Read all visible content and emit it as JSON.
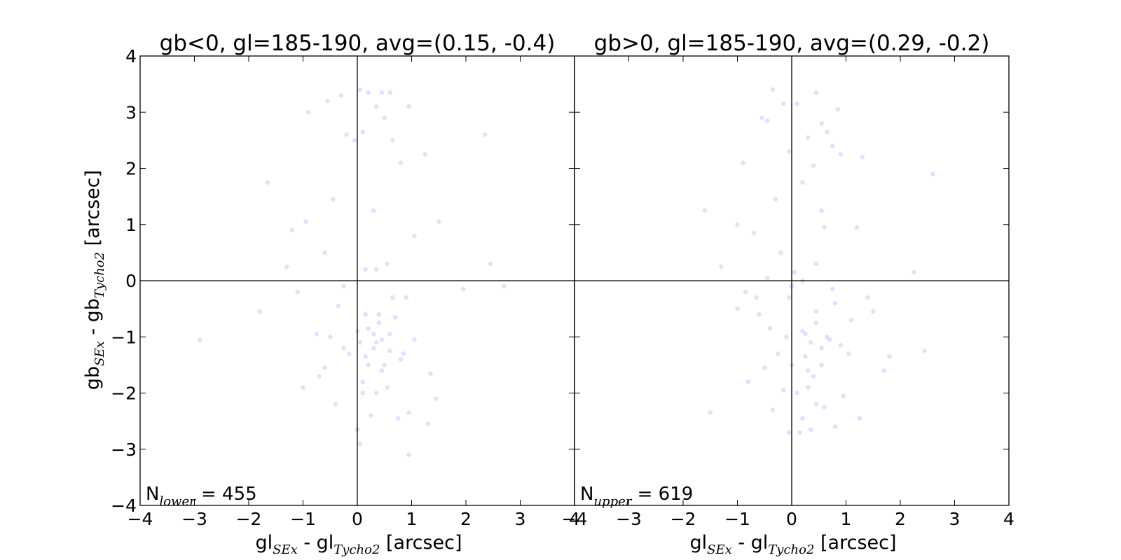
{
  "chart_data": [
    {
      "type": "scatter",
      "title": "gb<0, gl=185-190, avg=(0.15, -0.4)",
      "xlabel": {
        "main": "gl",
        "sub": "SEx",
        "mid": " - gl",
        "sub2": "Tycho2",
        "unit": " [arcsec]"
      },
      "ylabel": {
        "main": "gb",
        "sub": "SEx",
        "mid": " - gb",
        "sub2": "Tycho2",
        "unit": " [arcsec]"
      },
      "xlim": [
        -4,
        4
      ],
      "ylim": [
        -4,
        4
      ],
      "xticks": [
        "−4",
        "−3",
        "−2",
        "−1",
        "0",
        "1",
        "2",
        "3",
        "4"
      ],
      "yticks": [
        "−4",
        "−3",
        "−2",
        "−1",
        "0",
        "1",
        "2",
        "3",
        "4"
      ],
      "reference_lines": {
        "x": 0,
        "y": 0
      },
      "count_label": {
        "main": "N",
        "sub": "lower",
        "text": " = 455"
      },
      "point_color": "#4b4bff",
      "sample_points": {
        "x": [
          0.05,
          0.2,
          0.35,
          -0.3,
          0.45,
          0.6,
          -0.55,
          0.95,
          -0.9,
          1.25,
          0.5,
          -0.2,
          0.65,
          0.1,
          -0.05,
          2.35,
          -1.2,
          0.8,
          -1.65,
          0.3,
          -0.45,
          1.05,
          0.55,
          -0.95,
          0.15,
          1.5,
          2.45,
          -0.6,
          0.35,
          -1.3,
          2.7,
          1.95,
          -1.1,
          0.9,
          -1.8,
          0.4,
          -0.35,
          0.7,
          -0.75,
          0.2,
          0.05,
          0.45,
          -0.25,
          0.6,
          1.05,
          -2.9,
          1.35,
          0.3,
          -0.15,
          0.85,
          -0.6,
          0.5,
          -1.0,
          1.45,
          0.1,
          -0.4,
          0.25,
          0.75,
          0.0,
          0.95,
          0.35,
          -0.7,
          0.55,
          1.3,
          0.2,
          -0.25,
          0.65,
          0.0,
          0.4,
          0.8,
          0.05,
          0.15,
          0.95,
          -0.5,
          0.3,
          0.6,
          0.15,
          0.1,
          0.45,
          0.35
        ],
        "y": [
          3.4,
          3.35,
          3.1,
          3.3,
          3.35,
          3.35,
          3.2,
          3.1,
          3.0,
          2.25,
          2.9,
          2.6,
          2.5,
          2.65,
          2.5,
          2.6,
          0.9,
          2.1,
          1.75,
          1.25,
          1.45,
          0.8,
          0.3,
          1.05,
          0.2,
          1.05,
          0.3,
          0.5,
          0.2,
          0.25,
          -0.1,
          -0.15,
          -0.2,
          -0.3,
          -0.55,
          -0.6,
          -0.45,
          -0.65,
          -0.95,
          -0.85,
          -1.1,
          -1.05,
          -1.2,
          -0.95,
          -1.05,
          -1.05,
          -1.65,
          -1.2,
          -1.3,
          -1.3,
          -1.55,
          -1.5,
          -1.9,
          -2.1,
          -1.8,
          -2.2,
          -2.4,
          -2.45,
          -2.65,
          -2.35,
          -2.0,
          -1.7,
          -1.9,
          -2.55,
          -1.5,
          -0.1,
          -0.3,
          -0.9,
          -0.75,
          -1.4,
          -2.9,
          -1.35,
          -3.1,
          -1.0,
          -0.95,
          -1.25,
          -0.6,
          -2.0,
          -1.6,
          -1.1
        ]
      }
    },
    {
      "type": "scatter",
      "title": "gb>0, gl=185-190, avg=(0.29, -0.2)",
      "xlabel": {
        "main": "gl",
        "sub": "SEx",
        "mid": " - gl",
        "sub2": "Tycho2",
        "unit": " [arcsec]"
      },
      "ylabel": null,
      "xlim": [
        -4,
        4
      ],
      "ylim": [
        -4,
        4
      ],
      "xticks": [
        "−4",
        "−3",
        "−2",
        "−1",
        "0",
        "1",
        "2",
        "3",
        "4"
      ],
      "reference_lines": {
        "x": 0,
        "y": 0
      },
      "count_label": {
        "main": "N",
        "sub": "upper",
        "text": " = 619"
      },
      "point_color": "#4b4bff",
      "sample_points": {
        "x": [
          -0.35,
          -0.15,
          0.45,
          0.1,
          -0.55,
          0.85,
          0.55,
          -0.45,
          0.3,
          0.65,
          0.9,
          -0.05,
          0.4,
          0.75,
          -0.9,
          1.3,
          2.6,
          0.2,
          -0.3,
          0.55,
          -1.6,
          -1.0,
          0.6,
          -0.7,
          -0.2,
          1.2,
          0.05,
          0.45,
          -0.45,
          -1.3,
          0.2,
          -0.85,
          0.75,
          2.25,
          -0.05,
          1.4,
          -1.0,
          0.45,
          0.8,
          -0.6,
          1.1,
          0.2,
          -0.4,
          0.65,
          1.5,
          0.35,
          -0.1,
          0.9,
          -0.25,
          0.55,
          0.25,
          1.8,
          0.0,
          -0.8,
          2.45,
          0.4,
          1.7,
          -0.5,
          0.3,
          0.95,
          -1.5,
          0.1,
          0.6,
          -0.35,
          0.2,
          0.8,
          1.25,
          -0.05,
          0.45,
          0.35,
          -0.15,
          0.55,
          0.25,
          0.7,
          1.05,
          0.0,
          0.45,
          0.3,
          -0.65,
          0.15
        ],
        "y": [
          3.4,
          3.15,
          3.35,
          3.15,
          2.9,
          3.05,
          2.8,
          2.85,
          2.55,
          2.65,
          2.25,
          2.3,
          2.05,
          2.4,
          2.1,
          2.2,
          1.9,
          1.75,
          1.45,
          1.25,
          1.25,
          1.0,
          0.95,
          0.85,
          0.5,
          0.95,
          0.15,
          0.3,
          0.05,
          0.25,
          0.0,
          -0.2,
          -0.15,
          0.15,
          -0.3,
          -0.3,
          -0.5,
          -0.55,
          -0.4,
          -0.6,
          -0.7,
          -0.9,
          -0.85,
          -1.0,
          -0.55,
          -1.1,
          -1.0,
          -1.15,
          -1.3,
          -1.2,
          -1.35,
          -1.35,
          -1.5,
          -1.8,
          -1.25,
          -1.7,
          -1.6,
          -1.55,
          -1.9,
          -2.05,
          -2.35,
          -2.0,
          -2.25,
          -2.3,
          -2.45,
          -2.6,
          -2.45,
          -2.7,
          -2.2,
          -2.65,
          -1.95,
          -1.5,
          -0.95,
          -1.05,
          -1.3,
          -0.1,
          -0.75,
          -1.6,
          -0.3,
          -2.7
        ]
      }
    }
  ]
}
